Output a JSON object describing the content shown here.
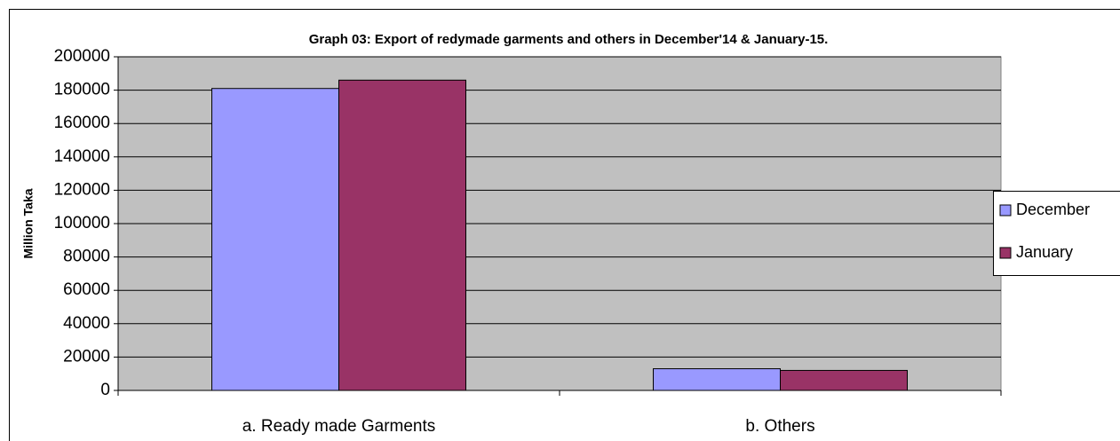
{
  "chart_data": {
    "type": "bar",
    "title": "Graph 03: Export of redymade garments and others in December'14 & January-15.",
    "y_label": "Million Taka",
    "categories": [
      "a. Ready made Garments",
      "b. Others"
    ],
    "series": [
      {
        "name": "December",
        "color": "#9999ff",
        "values": [
          181000,
          13000
        ]
      },
      {
        "name": "January",
        "color": "#993366",
        "values": [
          186000,
          12000
        ]
      }
    ],
    "ylim": [
      0,
      200000
    ],
    "yticks": [
      0,
      20000,
      40000,
      60000,
      80000,
      100000,
      120000,
      140000,
      160000,
      180000,
      200000
    ],
    "grid": true,
    "legend": "right"
  }
}
